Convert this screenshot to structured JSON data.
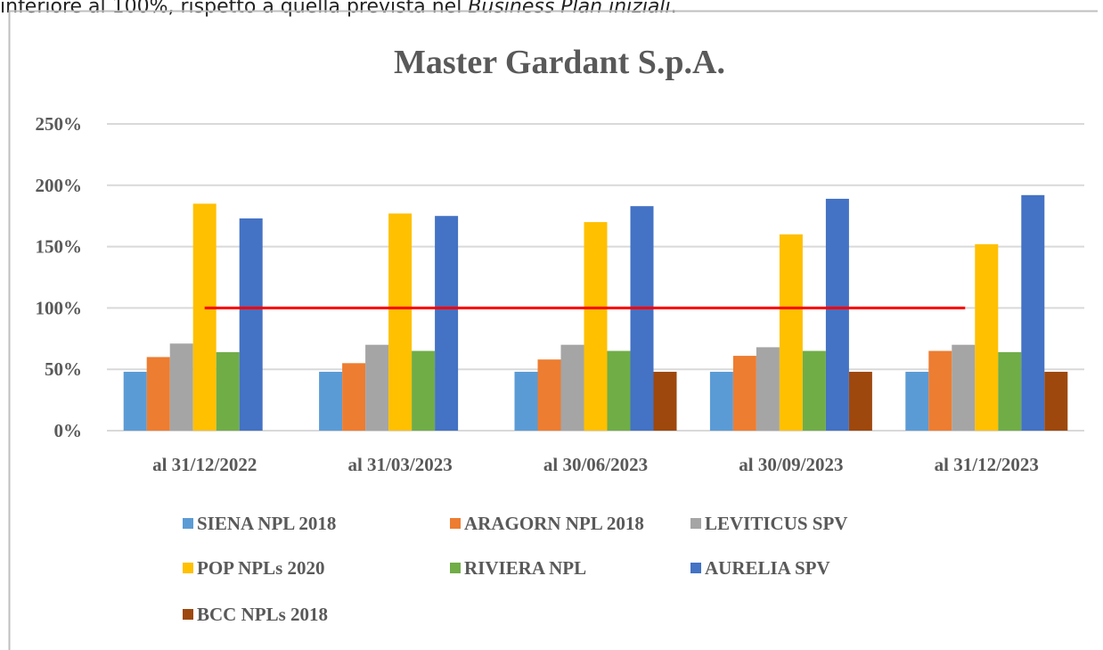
{
  "document_text": {
    "before": "inferiore al 100%, rispetto a quella prevista nel ",
    "emphasis": "Business Plan iniziali",
    "after": "."
  },
  "chart_data": {
    "type": "bar",
    "title": "Master Gardant S.p.A.",
    "categories": [
      "al 31/12/2022",
      "al 31/03/2023",
      "al 30/06/2023",
      "al 30/09/2023",
      "al 31/12/2023"
    ],
    "series": [
      {
        "name": "SIENA NPL 2018",
        "color": "#5b9bd5",
        "values": [
          48,
          48,
          48,
          48,
          48
        ]
      },
      {
        "name": "ARAGORN NPL 2018",
        "color": "#ed7d31",
        "values": [
          60,
          55,
          58,
          61,
          65
        ]
      },
      {
        "name": "LEVITICUS SPV",
        "color": "#a5a5a5",
        "values": [
          71,
          70,
          70,
          68,
          70
        ]
      },
      {
        "name": "POP NPLs 2020",
        "color": "#ffc000",
        "values": [
          185,
          177,
          170,
          160,
          152
        ]
      },
      {
        "name": "RIVIERA NPL",
        "color": "#70ad47",
        "values": [
          64,
          65,
          65,
          65,
          64
        ]
      },
      {
        "name": "AURELIA SPV",
        "color": "#4472c4",
        "values": [
          173,
          175,
          183,
          189,
          192
        ]
      },
      {
        "name": "BCC NPLs 2018",
        "color": "#9e480e",
        "values": [
          null,
          null,
          48,
          48,
          48
        ]
      }
    ],
    "reference_line": {
      "value": 100,
      "color": "#ff0000"
    },
    "ylim": [
      0,
      250
    ],
    "yticks": [
      {
        "value": 0,
        "label": "0%"
      },
      {
        "value": 50,
        "label": "50%"
      },
      {
        "value": 100,
        "label": "100%"
      },
      {
        "value": 150,
        "label": "150%"
      },
      {
        "value": 200,
        "label": "200%"
      },
      {
        "value": 250,
        "label": "250%"
      }
    ],
    "grid": true,
    "legend": "bottom"
  }
}
